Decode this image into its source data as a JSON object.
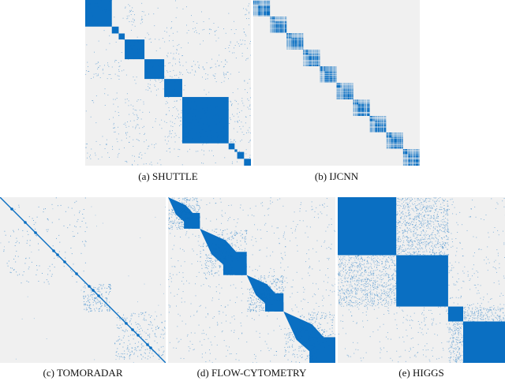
{
  "figure": {
    "colors": {
      "background": "#f0f0f0",
      "block": "#0a6fc2",
      "accent": "#1a73c8"
    },
    "panels": [
      {
        "id": "a",
        "caption": "(a) SHUTTLE"
      },
      {
        "id": "b",
        "caption": "(b) IJCNN"
      },
      {
        "id": "c",
        "caption": "(c) TOMORADAR"
      },
      {
        "id": "d",
        "caption": "(d) FLOW-CYTOMETRY"
      },
      {
        "id": "e",
        "caption": "(e) HIGGS"
      }
    ]
  },
  "chart_data": [
    {
      "type": "heatmap",
      "title": "(a) SHUTTLE",
      "description": "Block-diagonal sparsity pattern of reordered kernel/adjacency matrix",
      "diagonal_blocks_fraction": [
        0.155,
        0.04,
        0.035,
        0.115,
        0.115,
        0.105,
        0.27,
        0.035,
        0.015,
        0.04,
        0.04
      ],
      "grid": false
    },
    {
      "type": "heatmap",
      "title": "(b) IJCNN",
      "description": "Ten equal-sized dense diagonal blocks with internal sub-block structure",
      "diagonal_blocks_fraction": [
        0.1,
        0.1,
        0.1,
        0.1,
        0.1,
        0.1,
        0.1,
        0.1,
        0.1,
        0.1
      ],
      "grid": false
    },
    {
      "type": "heatmap",
      "title": "(c) TOMORADAR",
      "description": "Narrow banded diagonal with scattered off-diagonal clusters",
      "grid": false
    },
    {
      "type": "heatmap",
      "title": "(d) FLOW-CYTOMETRY",
      "description": "Four wedge-shaped diagonal blocks",
      "diagonal_blocks_fraction": [
        0.19,
        0.28,
        0.22,
        0.31
      ],
      "grid": false
    },
    {
      "type": "heatmap",
      "title": "(e) HIGGS",
      "description": "Four dense diagonal blocks with speckled off-diagonal regions",
      "diagonal_blocks_fraction": [
        0.35,
        0.31,
        0.09,
        0.25
      ],
      "grid": false
    }
  ]
}
